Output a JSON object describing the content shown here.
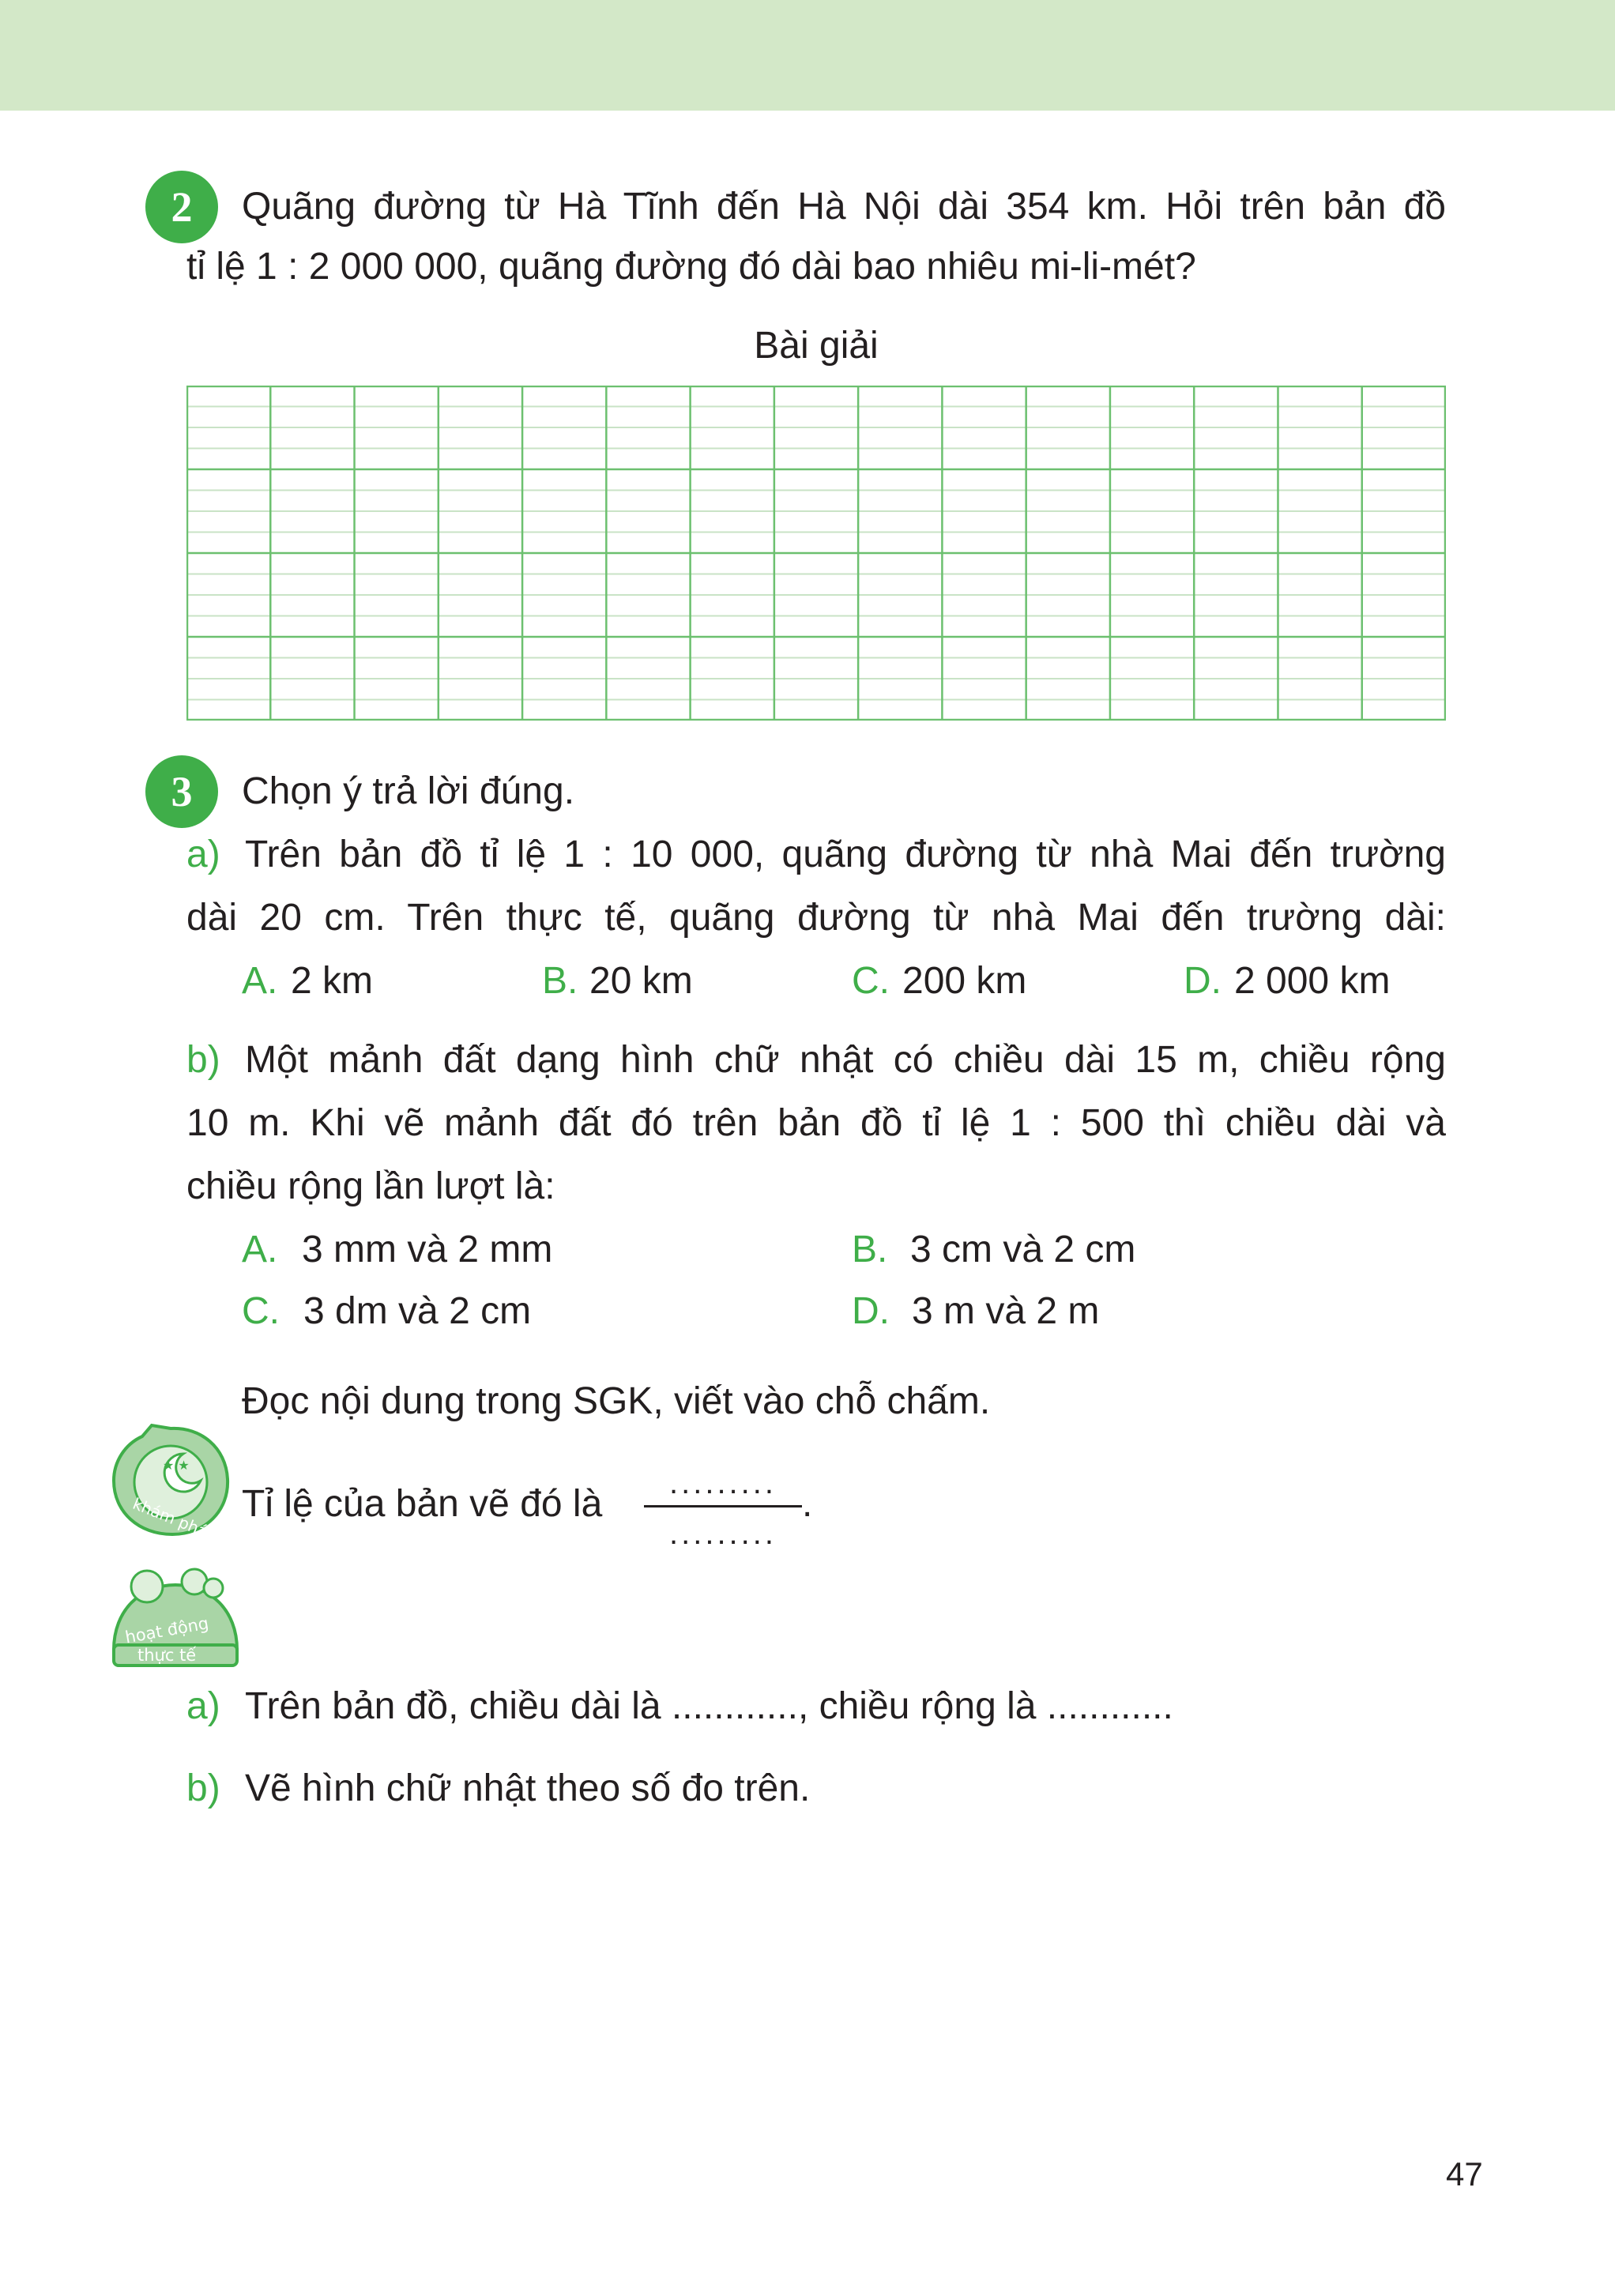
{
  "colors": {
    "accent": "#3fae49",
    "band": "#d3e8c8",
    "grid_major": "#6cc06f",
    "grid_minor": "#c9e3c6"
  },
  "ex2": {
    "number": "2",
    "line1": "Quãng đường từ Hà Tĩnh đến Hà Nội dài 354 km. Hỏi trên bản đồ",
    "line2": "tỉ lệ 1 : 2 000 000, quãng đường đó dài bao nhiêu mi-li-mét?",
    "heading": "Bài giải"
  },
  "ex3": {
    "number": "3",
    "prompt": "Chọn ý trả lời đúng.",
    "a": {
      "letter": "a)",
      "line1": "Trên bản đồ tỉ lệ 1 : 10 000, quãng đường từ nhà Mai đến trường",
      "line2": "dài 20 cm. Trên thực tế, quãng đường từ nhà Mai đến trường dài:",
      "options": [
        {
          "letter": "A.",
          "text": "2 km"
        },
        {
          "letter": "B.",
          "text": "20 km"
        },
        {
          "letter": "C.",
          "text": "200 km"
        },
        {
          "letter": "D.",
          "text": "2 000 km"
        }
      ]
    },
    "b": {
      "letter": "b)",
      "line1": "Một mảnh đất dạng hình chữ nhật có chiều dài 15 m, chiều rộng",
      "line2": "10 m. Khi vẽ mảnh đất đó trên bản đồ tỉ lệ 1 : 500 thì chiều dài và",
      "line3": "chiều rộng lần lượt là:",
      "options": [
        {
          "letter": "A.",
          "text": "3 mm và 2 mm"
        },
        {
          "letter": "B.",
          "text": "3 cm và 2 cm"
        },
        {
          "letter": "C.",
          "text": "3 dm và 2 cm"
        },
        {
          "letter": "D.",
          "text": "3 m và 2 m"
        }
      ]
    }
  },
  "kham_pha": {
    "icon_label": "khám phá",
    "instruction": "Đọc nội dung trong SGK, viết vào chỗ chấm.",
    "text": "Tỉ lệ của bản vẽ đó là",
    "numerator": ".........",
    "denominator": ".........",
    "period": "."
  },
  "thuc_te": {
    "icon_label_1": "hoạt động",
    "icon_label_2": "thực tế",
    "a_letter": "a)",
    "a_text": "Trên bản đồ, chiều dài là ............, chiều rộng là ............",
    "b_letter": "b)",
    "b_text": "Vẽ hình chữ nhật theo số đo trên."
  },
  "page_number": "47"
}
